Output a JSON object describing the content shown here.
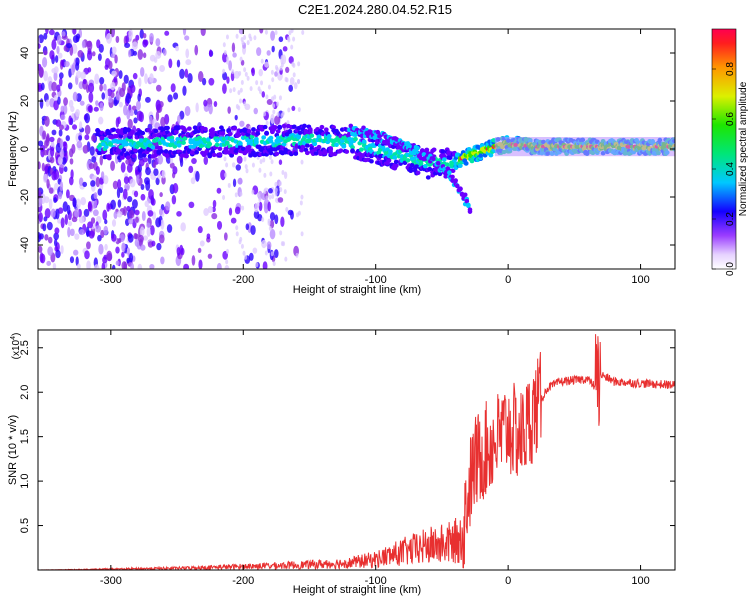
{
  "title": "C2E1.2024.280.04.52.R15",
  "chart_data": [
    {
      "type": "heatmap",
      "xlabel": "Height of straight line (km)",
      "ylabel": "Frequency (Hz)",
      "xlim": [
        -355,
        126
      ],
      "ylim": [
        -50,
        50
      ],
      "xticks": [
        -300,
        -200,
        -100,
        0,
        100
      ],
      "yticks": [
        -40,
        -20,
        0,
        20,
        40
      ],
      "colorbar": {
        "label": "Normalized spectral amplitude",
        "range": [
          0.0,
          0.96
        ],
        "ticks": [
          "0.0",
          "0.2",
          "0.4",
          "0.6",
          "0.8"
        ]
      },
      "ridge": {
        "x": [
          -310,
          -250,
          -200,
          -150,
          -120,
          -100,
          -80,
          -60,
          -45,
          -30,
          -10,
          0,
          20,
          60,
          126
        ],
        "y": [
          2,
          3,
          3,
          4,
          3,
          0,
          -3,
          -6,
          -6,
          -3,
          1,
          2,
          1,
          1,
          1
        ]
      },
      "secondary_branch": {
        "x": [
          -120,
          -100,
          -80,
          -60,
          -45,
          -35,
          -28
        ],
        "y": [
          8,
          6,
          2,
          -4,
          -10,
          -18,
          -26
        ]
      }
    },
    {
      "type": "line",
      "xlabel": "Height of straight line (km)",
      "ylabel": "SNR (10 * v/v)",
      "y_scale_label": "(x10",
      "y_scale_exp": "4",
      "y_scale_close": ")",
      "xlim": [
        -355,
        126
      ],
      "ylim": [
        0,
        2.7
      ],
      "xticks": [
        -300,
        -200,
        -100,
        0,
        100
      ],
      "yticks": [
        0.5,
        1.0,
        1.5,
        2.0,
        2.5
      ],
      "series": [
        {
          "color": "#e83030",
          "x": [
            -355,
            -300,
            -250,
            -200,
            -150,
            -120,
            -100,
            -80,
            -60,
            -45,
            -35,
            -30,
            -25,
            -20,
            -10,
            0,
            10,
            20,
            30,
            40,
            60,
            66,
            70,
            80,
            100,
            126
          ],
          "y": [
            0.0,
            0.01,
            0.02,
            0.04,
            0.06,
            0.08,
            0.12,
            0.2,
            0.27,
            0.3,
            0.35,
            0.9,
            1.2,
            1.3,
            1.45,
            1.6,
            1.5,
            1.8,
            2.05,
            2.12,
            2.15,
            2.05,
            2.2,
            2.12,
            2.1,
            2.08
          ]
        }
      ]
    }
  ]
}
